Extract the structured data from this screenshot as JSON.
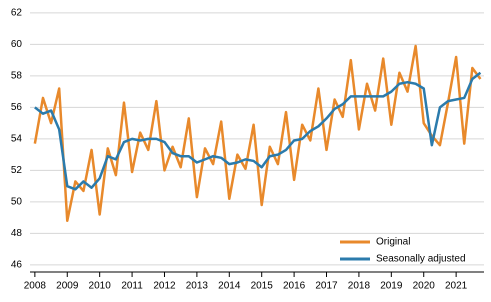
{
  "chart_data": {
    "type": "line",
    "x": [
      2008,
      2008.25,
      2008.5,
      2008.75,
      2009,
      2009.25,
      2009.5,
      2009.75,
      2010,
      2010.25,
      2010.5,
      2010.75,
      2011,
      2011.25,
      2011.5,
      2011.75,
      2012,
      2012.25,
      2012.5,
      2012.75,
      2013,
      2013.25,
      2013.5,
      2013.75,
      2014,
      2014.25,
      2014.5,
      2014.75,
      2015,
      2015.25,
      2015.5,
      2015.75,
      2016,
      2016.25,
      2016.5,
      2016.75,
      2017,
      2017.25,
      2017.5,
      2017.75,
      2018,
      2018.25,
      2018.5,
      2018.75,
      2019,
      2019.25,
      2019.5,
      2019.75,
      2020,
      2020.25,
      2020.5,
      2020.75,
      2021,
      2021.25,
      2021.5,
      2021.75
    ],
    "series": [
      {
        "name": "Original",
        "color": "#e8892b",
        "values": [
          53.7,
          56.6,
          55.0,
          57.2,
          48.8,
          51.3,
          50.7,
          53.3,
          49.2,
          53.4,
          51.7,
          56.3,
          51.9,
          54.4,
          53.3,
          56.4,
          52.0,
          53.5,
          52.2,
          55.3,
          50.3,
          53.4,
          52.4,
          55.1,
          50.2,
          53.0,
          52.1,
          54.9,
          49.8,
          53.5,
          52.4,
          55.7,
          51.4,
          54.9,
          53.9,
          57.2,
          53.3,
          56.5,
          55.4,
          59.0,
          54.6,
          57.5,
          55.8,
          59.1,
          54.9,
          58.2,
          57.0,
          59.9,
          55.0,
          54.2,
          53.6,
          56.3,
          59.2,
          53.7,
          58.5,
          57.8
        ]
      },
      {
        "name": "Seasonally adjusted",
        "color": "#2b7bac",
        "values": [
          56.0,
          55.6,
          55.8,
          54.6,
          51.0,
          50.8,
          51.3,
          50.9,
          51.5,
          52.9,
          52.7,
          53.8,
          54.0,
          53.9,
          54.0,
          54.0,
          53.8,
          53.1,
          52.9,
          52.9,
          52.5,
          52.7,
          52.9,
          52.8,
          52.4,
          52.5,
          52.7,
          52.6,
          52.2,
          52.9,
          53.0,
          53.3,
          53.9,
          54.0,
          54.5,
          54.8,
          55.3,
          55.9,
          56.2,
          56.7,
          56.7,
          56.7,
          56.7,
          56.7,
          57.0,
          57.5,
          57.6,
          57.5,
          57.2,
          53.6,
          56.0,
          56.4,
          56.5,
          56.6,
          57.8,
          58.2
        ]
      }
    ],
    "xlim": [
      2007.85,
      2021.86
    ],
    "xticks": [
      2008,
      2009,
      2010,
      2011,
      2012,
      2013,
      2014,
      2015,
      2016,
      2017,
      2018,
      2019,
      2020,
      2021
    ],
    "ylim": [
      45.55,
      62.5
    ],
    "yticks": [
      46,
      48,
      50,
      52,
      54,
      56,
      58,
      60,
      62
    ],
    "grid": true,
    "legend": "lower-right"
  }
}
